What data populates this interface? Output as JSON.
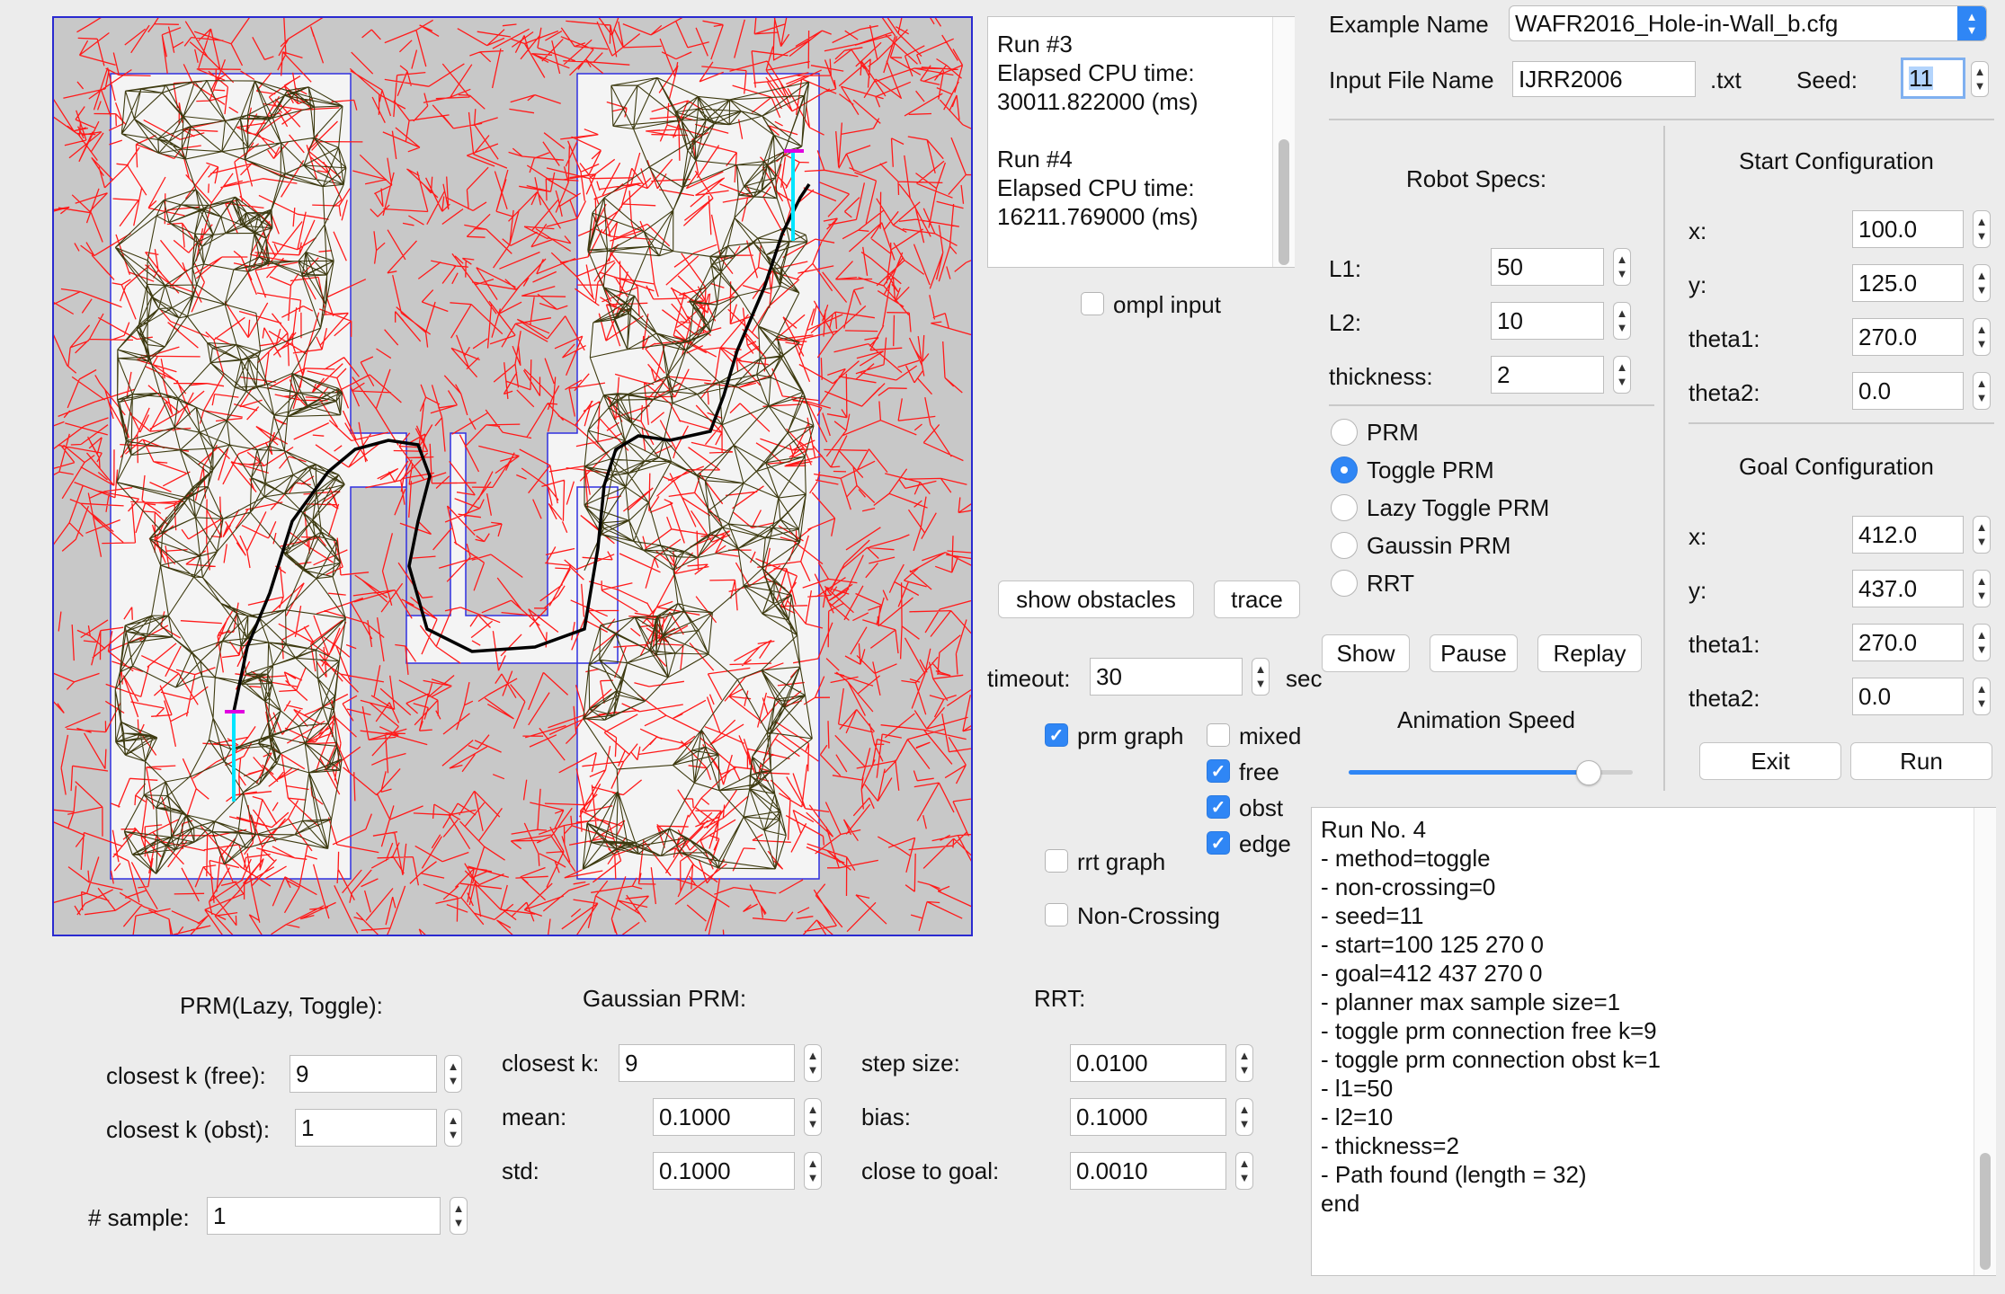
{
  "run_output": {
    "lines": [
      "Run #3",
      "Elapsed CPU time:",
      "30011.822000 (ms)",
      "",
      "Run #4",
      "Elapsed CPU time:",
      "16211.769000 (ms)"
    ]
  },
  "ompl_input": {
    "label": "ompl input",
    "checked": false
  },
  "example": {
    "label": "Example Name",
    "value": "WAFR2016_Hole-in-Wall_b.cfg"
  },
  "input_file": {
    "label": "Input File Name",
    "value": "IJRR2006",
    "suffix": ".txt"
  },
  "seed": {
    "label": "Seed:",
    "value": "11"
  },
  "robot_specs": {
    "title": "Robot Specs:",
    "l1": {
      "label": "L1:",
      "value": "50"
    },
    "l2": {
      "label": "L2:",
      "value": "10"
    },
    "thickness": {
      "label": "thickness:",
      "value": "2"
    }
  },
  "start_config": {
    "title": "Start Configuration",
    "x": {
      "label": "x:",
      "value": "100.0"
    },
    "y": {
      "label": "y:",
      "value": "125.0"
    },
    "theta1": {
      "label": "theta1:",
      "value": "270.0"
    },
    "theta2": {
      "label": "theta2:",
      "value": "0.0"
    }
  },
  "goal_config": {
    "title": "Goal Configuration",
    "x": {
      "label": "x:",
      "value": "412.0"
    },
    "y": {
      "label": "y:",
      "value": "437.0"
    },
    "theta1": {
      "label": "theta1:",
      "value": "270.0"
    },
    "theta2": {
      "label": "theta2:",
      "value": "0.0"
    }
  },
  "methods": {
    "options": [
      "PRM",
      "Toggle PRM",
      "Lazy Toggle PRM",
      "Gaussin PRM",
      "RRT"
    ],
    "selected": "Toggle PRM"
  },
  "buttons": {
    "show_obstacles": "show obstacles",
    "trace": "trace",
    "show": "Show",
    "pause": "Pause",
    "replay": "Replay",
    "exit": "Exit",
    "run": "Run"
  },
  "timeout": {
    "label": "timeout:",
    "value": "30",
    "unit": "sec"
  },
  "animation_speed": {
    "label": "Animation Speed",
    "value": 0.88
  },
  "graph_options": {
    "prm_graph": {
      "label": "prm graph",
      "checked": true
    },
    "mixed": {
      "label": "mixed",
      "checked": false
    },
    "free": {
      "label": "free",
      "checked": true
    },
    "obst": {
      "label": "obst",
      "checked": true
    },
    "edge": {
      "label": "edge",
      "checked": true
    },
    "rrt_graph": {
      "label": "rrt graph",
      "checked": false
    },
    "non_crossing": {
      "label": "Non-Crossing",
      "checked": false
    }
  },
  "prm_params": {
    "title": "PRM(Lazy, Toggle):",
    "closest_free": {
      "label": "closest k (free):",
      "value": "9"
    },
    "closest_obst": {
      "label": "closest k (obst):",
      "value": "1"
    },
    "sample": {
      "label": "# sample:",
      "value": "1"
    }
  },
  "gaussian_params": {
    "title": "Gaussian PRM:",
    "closest": {
      "label": "closest k:",
      "value": "9"
    },
    "mean": {
      "label": "mean:",
      "value": "0.1000"
    },
    "std": {
      "label": "std:",
      "value": "0.1000"
    }
  },
  "rrt_params": {
    "title": "RRT:",
    "step": {
      "label": "step size:",
      "value": "0.0100"
    },
    "bias": {
      "label": "bias:",
      "value": "0.1000"
    },
    "close": {
      "label": "close to goal:",
      "value": "0.0010"
    }
  },
  "log": {
    "lines": [
      "Run No. 4",
      "- method=toggle",
      "- non-crossing=0",
      "- seed=11",
      "- start=100 125 270 0",
      "- goal=412 437 270 0",
      "- planner max sample size=1",
      "- toggle prm connection free k=9",
      "- toggle prm connection obst k=1",
      "- l1=50",
      "- l2=10",
      "- thickness=2",
      "- Path found (length = 32)",
      "end"
    ]
  },
  "colors": {
    "accent": "#2f86f5",
    "free_edge": "#3d3a10",
    "obst_edge": "#ff0000",
    "path": "#000000",
    "robot_link": "#00e5ff"
  }
}
